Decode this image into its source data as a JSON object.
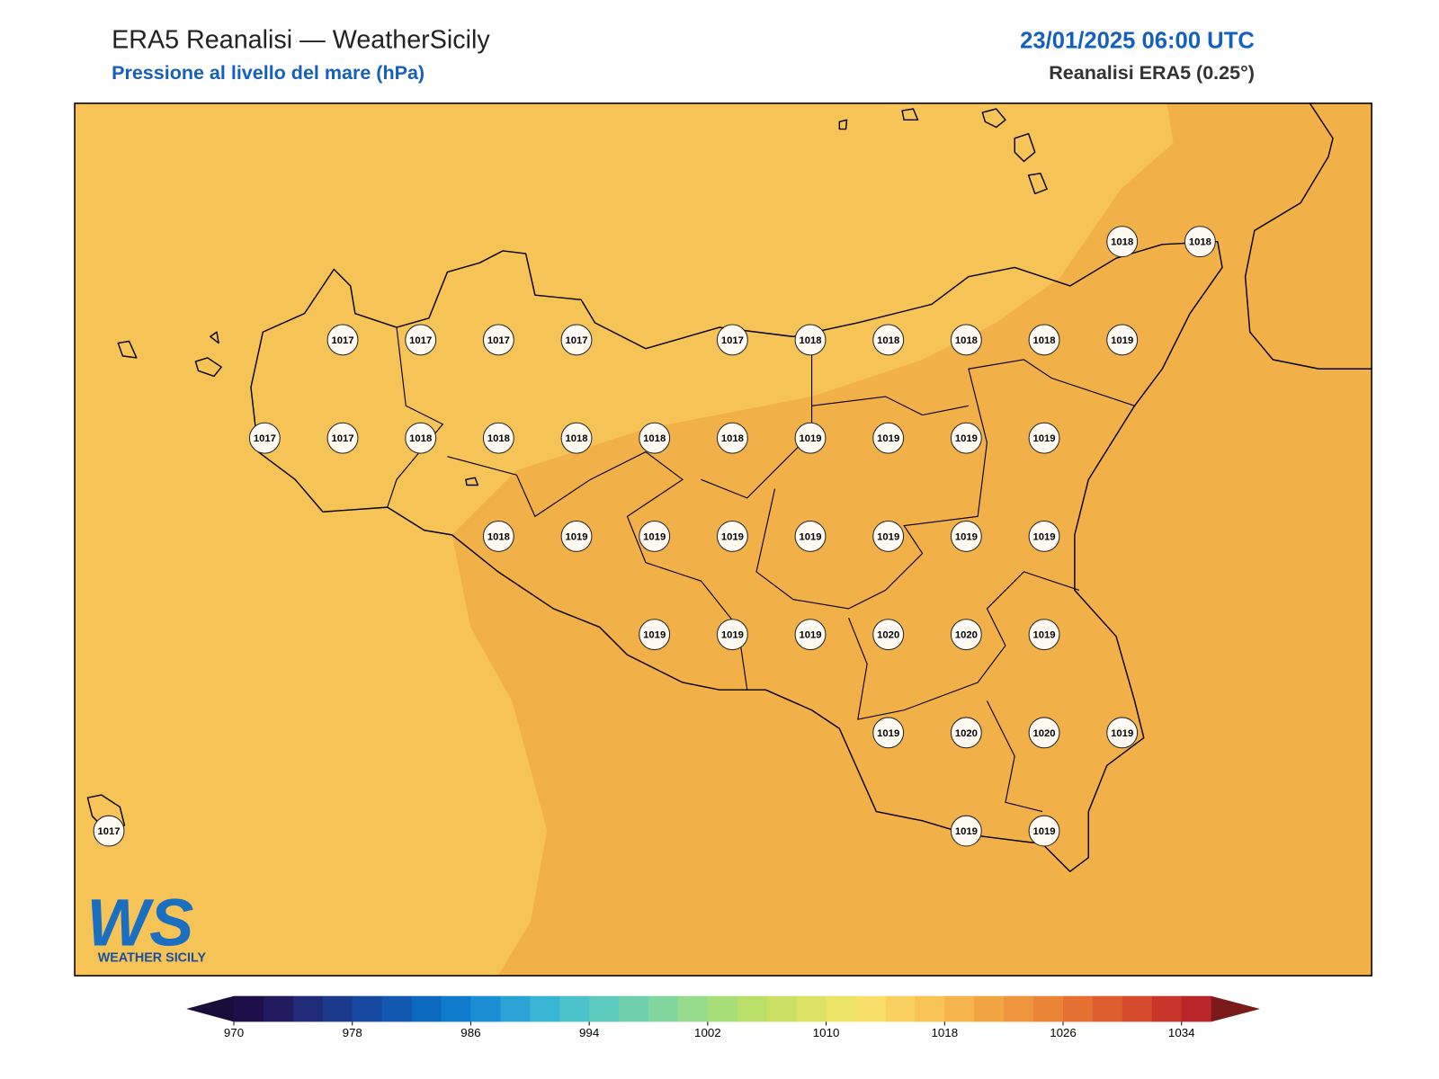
{
  "header": {
    "title": "ERA5 Reanalisi — WeatherSicily",
    "subtitle": "Pressione al livello del mare (hPa)",
    "datetime": "23/01/2025 06:00 UTC",
    "source": "Reanalisi ERA5 (0.25°)"
  },
  "pressure_grid": [
    [
      null,
      null,
      null,
      null,
      null,
      null,
      null,
      null,
      null,
      null,
      null,
      null,
      null,
      1018,
      1018
    ],
    [
      null,
      null,
      null,
      1017,
      1017,
      1017,
      1017,
      null,
      1017,
      1018,
      1018,
      1018,
      1018,
      1019,
      null
    ],
    [
      null,
      null,
      1017,
      1017,
      1018,
      1018,
      1018,
      1018,
      1018,
      1019,
      1019,
      1019,
      1019,
      null,
      null
    ],
    [
      null,
      null,
      null,
      null,
      null,
      1018,
      1019,
      1019,
      1019,
      1019,
      1019,
      1019,
      1019,
      null,
      null
    ],
    [
      null,
      null,
      null,
      null,
      null,
      null,
      null,
      1019,
      1019,
      1019,
      1020,
      1020,
      1019,
      null,
      null
    ],
    [
      null,
      null,
      null,
      null,
      null,
      null,
      null,
      null,
      null,
      null,
      1019,
      1020,
      1020,
      1019,
      null
    ],
    [
      1017,
      null,
      null,
      null,
      null,
      null,
      null,
      null,
      null,
      null,
      null,
      1019,
      1019,
      null,
      null
    ]
  ],
  "colorbar": {
    "range": [
      970,
      1036
    ],
    "ticks": [
      970,
      978,
      986,
      994,
      1002,
      1010,
      1018,
      1026,
      1034
    ],
    "colors": [
      "#1e0f4a",
      "#221a5e",
      "#1f2a78",
      "#1b3a8c",
      "#1749a0",
      "#1257b0",
      "#0d68c0",
      "#0f7bcc",
      "#1b8ed3",
      "#2aa2d6",
      "#39b5d4",
      "#4cc3cb",
      "#5fcabe",
      "#70d0ad",
      "#82d59c",
      "#96db8b",
      "#a8de78",
      "#badf69",
      "#ccdf65",
      "#dde266",
      "#ece466",
      "#f9e06a",
      "#fad160",
      "#f8c455",
      "#f5b44c",
      "#f2a443",
      "#ee943c",
      "#ea8436",
      "#e57032",
      "#de5e2f",
      "#d64b2e",
      "#c9372c",
      "#b8262a"
    ],
    "under_color": "#190e3a",
    "over_color": "#7a1a1a"
  },
  "logo": {
    "initials": "WS",
    "name": "WEATHER SICILY"
  }
}
